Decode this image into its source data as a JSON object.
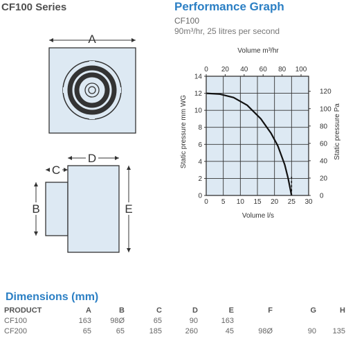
{
  "header": {
    "series_title": "CF100 Series",
    "graph_title": "Performance Graph",
    "model": "CF100",
    "spec": "90m³/hr, 25 litres per second"
  },
  "diagram": {
    "front_label_a": "A",
    "side_label_b": "B",
    "side_label_c": "C",
    "side_label_d": "D",
    "side_label_e": "E",
    "fill_color": "#dde9f3",
    "line_color": "#333333"
  },
  "chart_data": {
    "type": "line",
    "title": "",
    "xlabel": "Volume l/s",
    "x2label": "Volume m³/hr",
    "ylabel": "Static pressure mm WG",
    "y2label": "Static pressure Pa",
    "xlim": [
      0,
      30
    ],
    "ylim": [
      0,
      14
    ],
    "x_ticks": [
      "0",
      "5",
      "10",
      "15",
      "20",
      "25",
      "30"
    ],
    "x2_ticks": [
      "0",
      "20",
      "40",
      "60",
      "80",
      "100"
    ],
    "y_ticks": [
      "0",
      "2",
      "4",
      "6",
      "8",
      "10",
      "12",
      "14"
    ],
    "y2_ticks": [
      "0",
      "20",
      "40",
      "60",
      "80",
      "100",
      "120"
    ],
    "grid": true,
    "background_color": "#dde9f3",
    "series": [
      {
        "x": [
          0,
          4,
          8,
          12,
          16,
          19,
          21,
          23,
          24,
          25
        ],
        "y": [
          12,
          11.9,
          11.5,
          10.6,
          9.0,
          7.3,
          5.8,
          3.6,
          2.0,
          0
        ]
      }
    ],
    "dashed_line": {
      "x": 25
    }
  },
  "dimensions": {
    "title": "Dimensions (mm)",
    "headers": [
      "PRODUCT",
      "A",
      "B",
      "C",
      "D",
      "E",
      "F",
      "G",
      "H"
    ],
    "rows": [
      [
        "CF100",
        "163",
        "98Ø",
        "65",
        "90",
        "163",
        "",
        "",
        ""
      ],
      [
        "CF200",
        "65",
        "65",
        "185",
        "260",
        "45",
        "98Ø",
        "90",
        "135"
      ]
    ]
  }
}
